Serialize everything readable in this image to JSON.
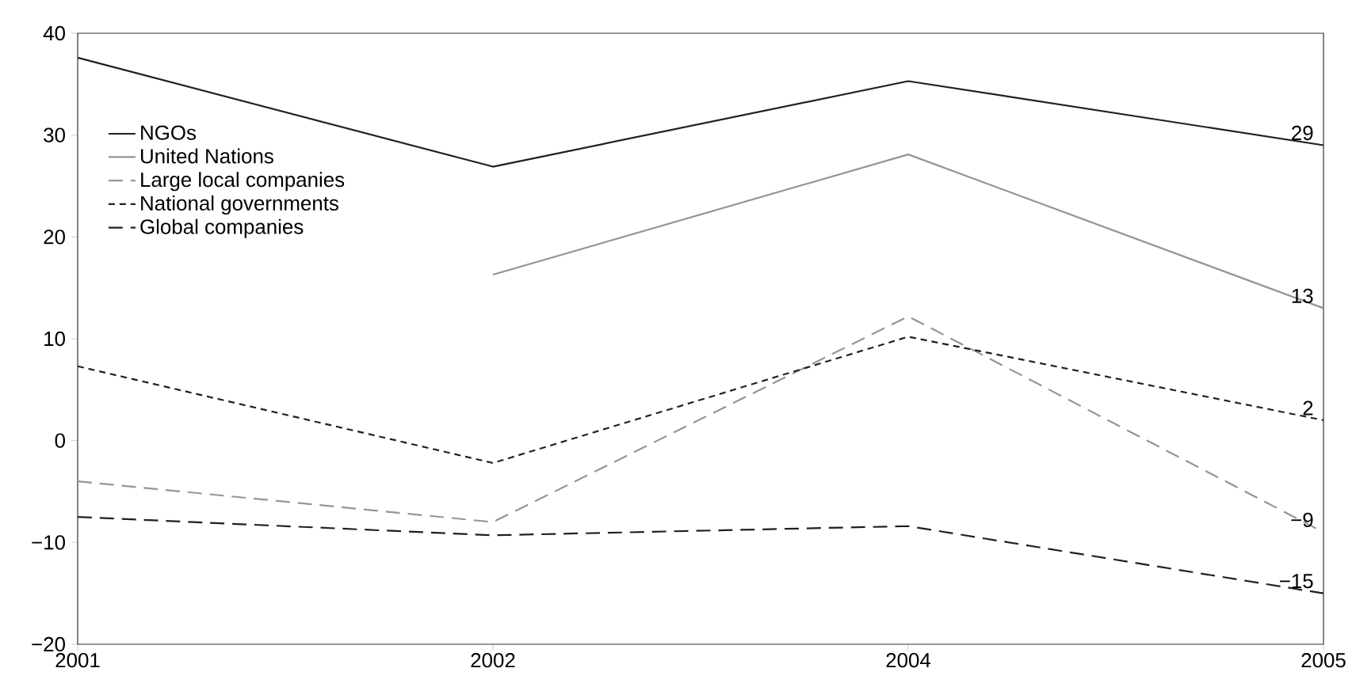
{
  "chart_data": {
    "type": "line",
    "categories": [
      "2001",
      "2002",
      "2004",
      "2005"
    ],
    "series": [
      {
        "name": "NGOs",
        "color": "#231f20",
        "line_style": "solid",
        "values": [
          37.6,
          26.9,
          35.3,
          29
        ],
        "value_labels": [
          null,
          null,
          null,
          "29"
        ]
      },
      {
        "name": "United Nations",
        "color": "#939598",
        "line_style": "solid",
        "values": [
          null,
          16.3,
          28.1,
          13
        ],
        "value_labels": [
          null,
          null,
          null,
          "13"
        ]
      },
      {
        "name": "Large local companies",
        "color": "#939598",
        "line_style": "dashed",
        "values": [
          -4.0,
          -8.0,
          12.2,
          -9
        ],
        "value_labels": [
          null,
          null,
          null,
          "−9"
        ]
      },
      {
        "name": "National governments",
        "color": "#231f20",
        "line_style": "dotted",
        "values": [
          7.3,
          -2.2,
          10.2,
          2
        ],
        "value_labels": [
          null,
          null,
          null,
          "2"
        ]
      },
      {
        "name": "Global companies",
        "color": "#231f20",
        "line_style": "dashed",
        "values": [
          -7.5,
          -9.3,
          -8.4,
          -15
        ],
        "value_labels": [
          null,
          null,
          null,
          "−15"
        ]
      }
    ],
    "ylim": [
      -20,
      40
    ],
    "yticks": [
      {
        "value": -20,
        "label": "−20"
      },
      {
        "value": -10,
        "label": "−10"
      },
      0,
      10,
      20,
      30,
      40
    ],
    "legend": "top left",
    "grid": false,
    "marker": "none"
  }
}
